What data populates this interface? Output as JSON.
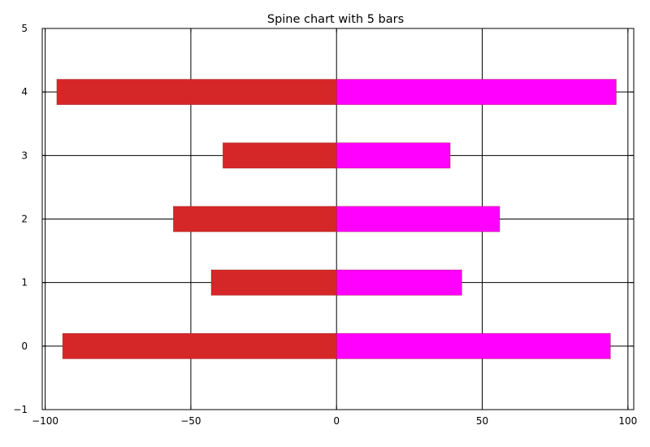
{
  "chart_data": {
    "type": "bar",
    "orientation": "horizontal",
    "title": "Spine chart with 5 bars",
    "xlabel": "",
    "ylabel": "",
    "xlim": [
      -101,
      102
    ],
    "ylim": [
      -1,
      5
    ],
    "xticks": [
      -100,
      -50,
      0,
      50,
      100
    ],
    "xtick_labels": [
      "−100",
      "−50",
      "0",
      "50",
      "100"
    ],
    "yticks": [
      -1,
      0,
      1,
      2,
      3,
      4,
      5
    ],
    "ytick_labels": [
      "−1",
      "0",
      "1",
      "2",
      "3",
      "4",
      "5"
    ],
    "grid": true,
    "bar_height": 0.4,
    "categories": [
      0,
      1,
      2,
      3,
      4
    ],
    "series": [
      {
        "color": "#d62728",
        "values": [
          -94,
          -43,
          -56,
          -39,
          -96
        ]
      },
      {
        "color": "#ff00ff",
        "values": [
          94,
          43,
          56,
          39,
          96
        ]
      }
    ]
  }
}
